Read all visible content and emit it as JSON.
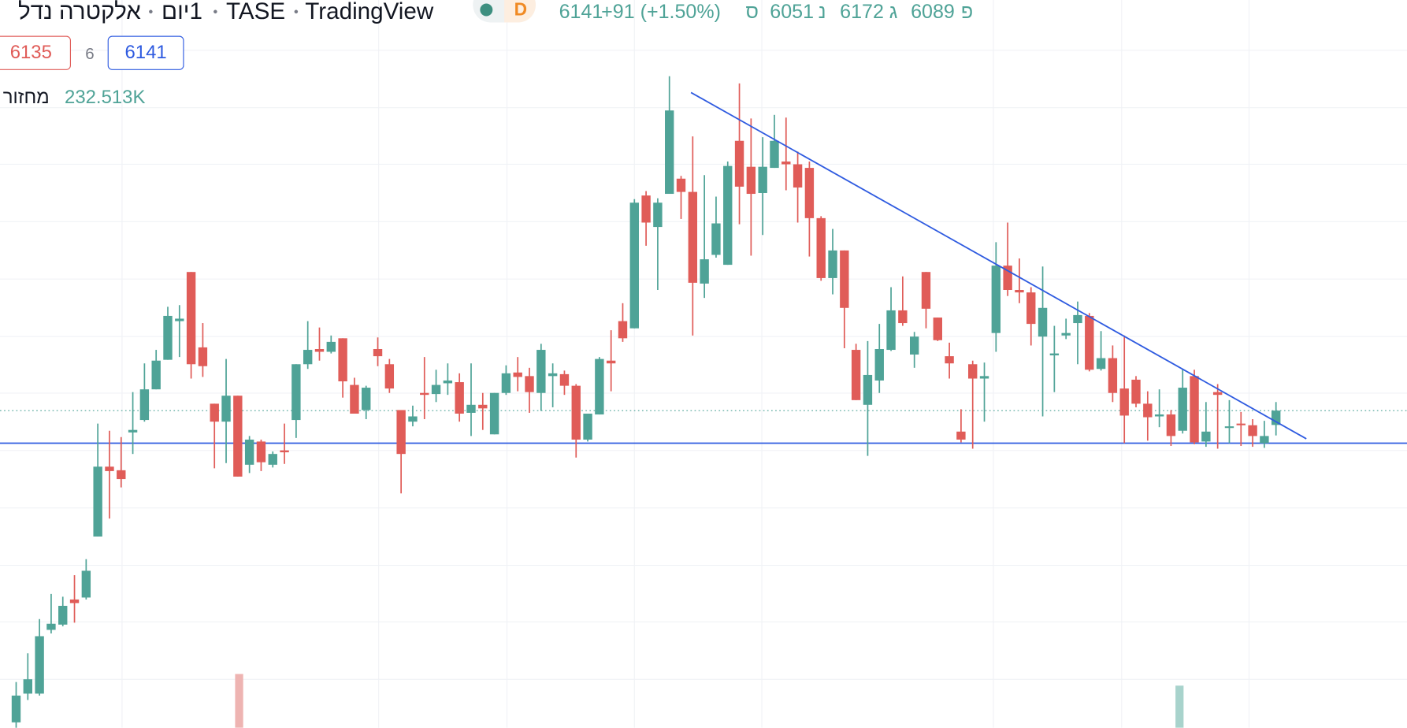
{
  "header": {
    "symbol": "אלקטרה נדל",
    "interval": "1יום",
    "exchange": "TASE",
    "source": "TradingView",
    "timeframe_badge": "D",
    "ohlc_labels": [
      "פ",
      "ג",
      "נ",
      "ס"
    ],
    "change": "+91 (+1.50%)",
    "bid": 6135,
    "spread": 6,
    "ask": 6141,
    "volume_label": "מחזור",
    "volume": "232.513K"
  },
  "chart_data": {
    "type": "candlestick",
    "up_color": "#4fa397",
    "down_color": "#e05c58",
    "line_color": "#2f5be0",
    "ylim": [
      4992,
      7628
    ],
    "ohlc": [
      [
        5012,
        5158,
        4992,
        5109
      ],
      [
        5116,
        5262,
        5093,
        5168
      ],
      [
        5116,
        5386,
        5109,
        5324
      ],
      [
        5347,
        5477,
        5334,
        5369
      ],
      [
        5366,
        5467,
        5360,
        5434
      ],
      [
        5457,
        5545,
        5373,
        5444
      ],
      [
        5464,
        5603,
        5457,
        5561
      ],
      [
        5685,
        6094,
        5685,
        5938
      ],
      [
        5938,
        6068,
        5750,
        5922
      ],
      [
        5925,
        6045,
        5863,
        5893
      ],
      [
        6062,
        6208,
        5984,
        6071
      ],
      [
        6107,
        6312,
        6101,
        6218
      ],
      [
        6218,
        6361,
        6218,
        6322
      ],
      [
        6325,
        6517,
        6325,
        6484
      ],
      [
        6465,
        6523,
        6335,
        6474
      ],
      [
        6643,
        6643,
        6257,
        6309
      ],
      [
        6370,
        6458,
        6263,
        6302
      ],
      [
        6166,
        6166,
        5932,
        6101
      ],
      [
        6101,
        6328,
        5951,
        6195
      ],
      [
        6195,
        6195,
        5902,
        5902
      ],
      [
        5945,
        6049,
        5915,
        6036
      ],
      [
        6029,
        6036,
        5922,
        5954
      ],
      [
        5945,
        5993,
        5935,
        5984
      ],
      [
        5997,
        6094,
        5948,
        5990
      ],
      [
        6107,
        6309,
        6042,
        6309
      ],
      [
        6309,
        6465,
        6292,
        6361
      ],
      [
        6364,
        6442,
        6322,
        6354
      ],
      [
        6354,
        6413,
        6348,
        6390
      ],
      [
        6403,
        6403,
        6188,
        6247
      ],
      [
        6234,
        6260,
        6130,
        6130
      ],
      [
        6143,
        6231,
        6110,
        6224
      ],
      [
        6364,
        6406,
        6302,
        6338
      ],
      [
        6309,
        6328,
        6205,
        6221
      ],
      [
        6143,
        6143,
        5841,
        5984
      ],
      [
        6101,
        6159,
        6084,
        6120
      ],
      [
        6205,
        6335,
        6110,
        6198
      ],
      [
        6201,
        6289,
        6172,
        6234
      ],
      [
        6240,
        6312,
        6198,
        6250
      ],
      [
        6244,
        6276,
        6101,
        6130
      ],
      [
        6133,
        6312,
        6049,
        6162
      ],
      [
        6162,
        6205,
        6071,
        6149
      ],
      [
        6055,
        6205,
        6055,
        6205
      ],
      [
        6205,
        6305,
        6198,
        6276
      ],
      [
        6279,
        6335,
        6211,
        6263
      ],
      [
        6266,
        6296,
        6133,
        6208
      ],
      [
        6205,
        6383,
        6140,
        6361
      ],
      [
        6266,
        6312,
        6153,
        6276
      ],
      [
        6273,
        6286,
        6198,
        6231
      ],
      [
        6231,
        6237,
        5971,
        6036
      ],
      [
        6036,
        6130,
        6029,
        6130
      ],
      [
        6127,
        6335,
        6127,
        6328
      ],
      [
        6322,
        6432,
        6211,
        6312
      ],
      [
        6465,
        6530,
        6390,
        6403
      ],
      [
        6439,
        6907,
        6439,
        6894
      ],
      [
        6920,
        6936,
        6738,
        6822
      ],
      [
        6806,
        6910,
        6578,
        6894
      ],
      [
        6926,
        7352,
        6926,
        7228
      ],
      [
        6981,
        6991,
        6835,
        6933
      ],
      [
        6933,
        7134,
        6413,
        6604
      ],
      [
        6601,
        6994,
        6549,
        6689
      ],
      [
        6705,
        6916,
        6695,
        6819
      ],
      [
        6669,
        7043,
        6669,
        7027
      ],
      [
        7118,
        7326,
        6816,
        6952
      ],
      [
        7024,
        7199,
        6702,
        6926
      ],
      [
        6929,
        7131,
        6777,
        7024
      ],
      [
        7020,
        7212,
        7020,
        7118
      ],
      [
        7043,
        7202,
        6939,
        7033
      ],
      [
        7033,
        7079,
        6822,
        6949
      ],
      [
        7020,
        7043,
        6699,
        6838
      ],
      [
        6838,
        6845,
        6611,
        6621
      ],
      [
        6621,
        6799,
        6562,
        6721
      ],
      [
        6721,
        6721,
        6367,
        6513
      ],
      [
        6361,
        6383,
        6179,
        6179
      ],
      [
        6162,
        6393,
        5977,
        6270
      ],
      [
        6250,
        6455,
        6205,
        6364
      ],
      [
        6361,
        6588,
        6357,
        6504
      ],
      [
        6504,
        6627,
        6448,
        6458
      ],
      [
        6344,
        6426,
        6296,
        6409
      ],
      [
        6643,
        6643,
        6439,
        6510
      ],
      [
        6478,
        6478,
        6393,
        6396
      ],
      [
        6338,
        6387,
        6257,
        6312
      ],
      [
        6065,
        6146,
        6026,
        6036
      ],
      [
        6309,
        6322,
        6003,
        6257
      ],
      [
        6257,
        6315,
        6101,
        6266
      ],
      [
        6422,
        6751,
        6354,
        6666
      ],
      [
        6666,
        6822,
        6556,
        6578
      ],
      [
        6578,
        6692,
        6530,
        6569
      ],
      [
        6569,
        6588,
        6377,
        6455
      ],
      [
        6409,
        6663,
        6120,
        6513
      ],
      [
        6341,
        6448,
        6208,
        6348
      ],
      [
        6413,
        6474,
        6400,
        6422
      ],
      [
        6458,
        6536,
        6309,
        6487
      ],
      [
        6484,
        6494,
        6283,
        6289
      ],
      [
        6292,
        6429,
        6286,
        6331
      ],
      [
        6331,
        6377,
        6172,
        6205
      ],
      [
        6221,
        6413,
        6023,
        6123
      ],
      [
        6253,
        6266,
        6153,
        6166
      ],
      [
        6166,
        6211,
        6032,
        6117
      ],
      [
        6120,
        6218,
        6081,
        6127
      ],
      [
        6127,
        6143,
        6013,
        6049
      ],
      [
        6068,
        6292,
        6058,
        6224
      ],
      [
        6266,
        6289,
        6019,
        6026
      ],
      [
        6029,
        6172,
        6010,
        6065
      ],
      [
        6208,
        6237,
        6003,
        6198
      ],
      [
        6078,
        6179,
        6023,
        6084
      ],
      [
        6094,
        6136,
        6013,
        6088
      ],
      [
        6088,
        6110,
        6010,
        6049
      ],
      [
        6023,
        6104,
        6006,
        6049
      ],
      [
        6089,
        6172,
        6051,
        6141
      ]
    ],
    "horizontal_line": 6023,
    "trend_line": {
      "x": [
        57.85,
        110.6
      ],
      "y": [
        7293,
        6039
      ]
    }
  }
}
